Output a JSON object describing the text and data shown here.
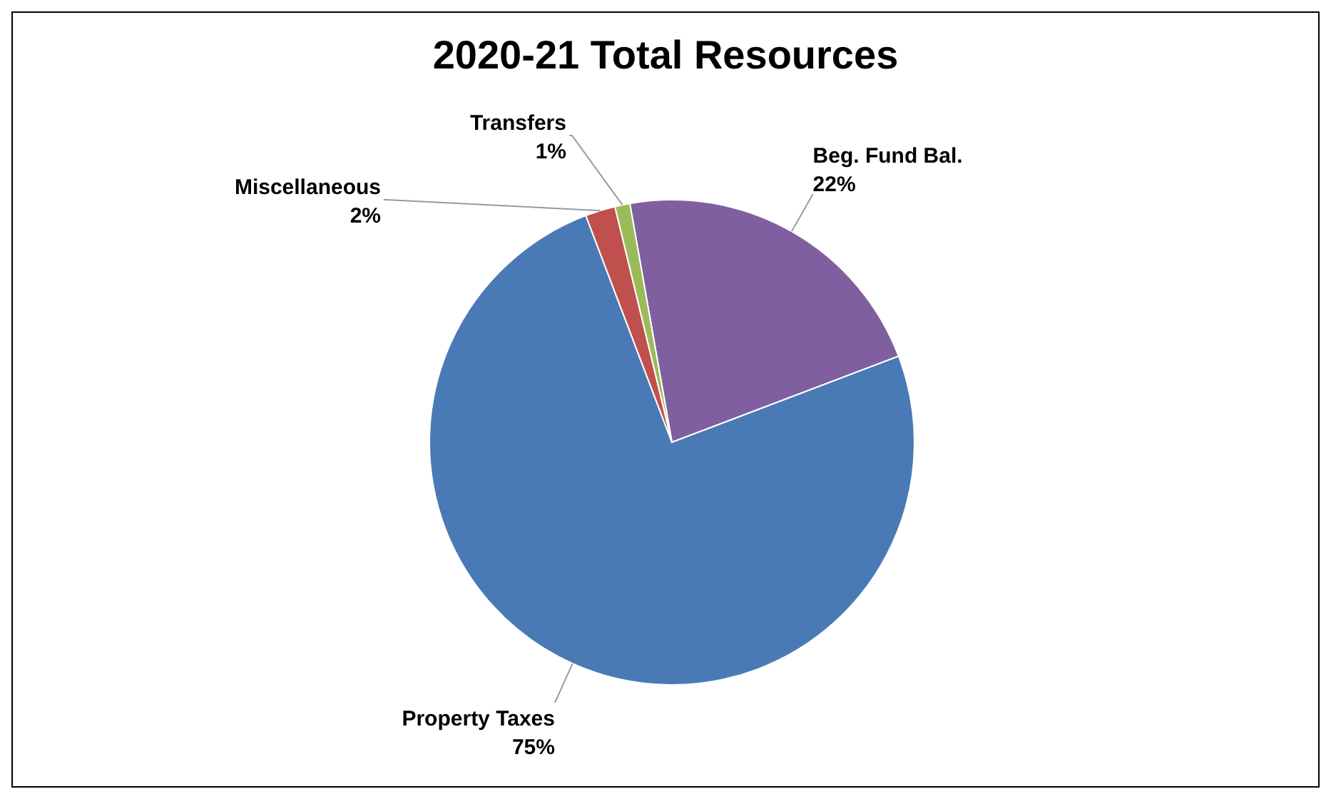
{
  "chart_data": {
    "type": "pie",
    "title": "2020-21 Total Resources",
    "categories": [
      "Beg. Fund Bal.",
      "Property Taxes",
      "Miscellaneous",
      "Transfers"
    ],
    "values": [
      22,
      75,
      2,
      1
    ],
    "value_labels": [
      "22%",
      "75%",
      "2%",
      "1%"
    ],
    "colors": [
      "#7f5f9f",
      "#4a7ab5",
      "#c0504d",
      "#9bbb59"
    ],
    "legend": false
  }
}
